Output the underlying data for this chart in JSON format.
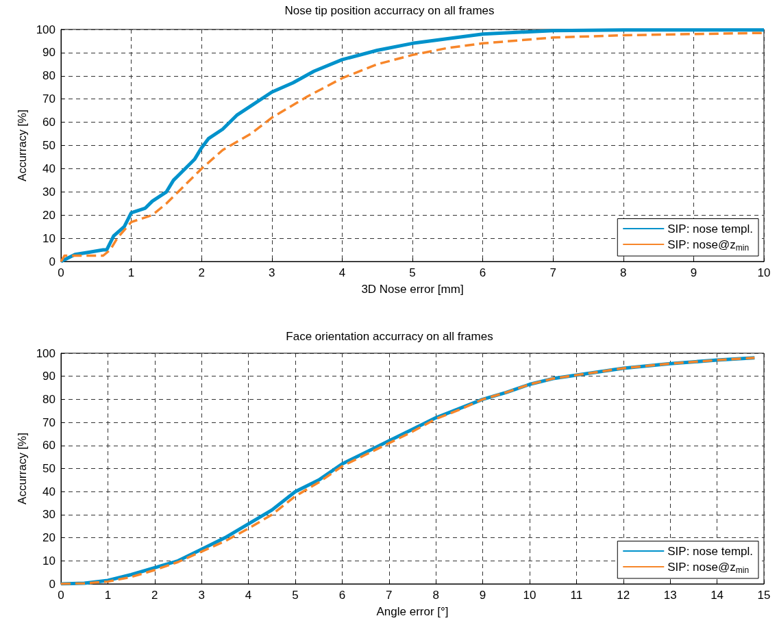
{
  "chart_data": [
    {
      "type": "line",
      "title": "Nose tip position accurracy on all frames",
      "xlabel": "3D Nose error [mm]",
      "ylabel": "Accurracy [%]",
      "xlim": [
        0,
        10
      ],
      "xticks": [
        0,
        1,
        2,
        3,
        4,
        5,
        6,
        7,
        8,
        9,
        10
      ],
      "ylim": [
        0,
        100
      ],
      "yticks": [
        0,
        10,
        20,
        30,
        40,
        50,
        60,
        70,
        80,
        90,
        100
      ],
      "grid": true,
      "legend": "bottom right",
      "marker": "none",
      "series": [
        {
          "name": "SIP: nose templ.",
          "color": "#0092cb",
          "line_style": "solid",
          "x": [
            0,
            0.2,
            0.4,
            0.6,
            0.65,
            0.75,
            0.9,
            1.0,
            1.2,
            1.3,
            1.5,
            1.6,
            1.8,
            1.9,
            2.0,
            2.1,
            2.3,
            2.5,
            2.7,
            3.0,
            3.3,
            3.6,
            4.0,
            4.5,
            5.0,
            5.5,
            6.0,
            7.0,
            8.0,
            10.0
          ],
          "values": [
            0,
            3,
            4,
            5,
            5,
            11,
            15,
            21,
            23,
            26,
            30,
            35,
            41,
            44,
            49,
            53,
            57,
            63,
            67,
            73,
            77,
            82,
            87,
            91,
            94,
            96,
            98,
            99.5,
            99.8,
            99.8
          ]
        },
        {
          "name": "SIP: nose@z$_{min}$",
          "color": "#f7862a",
          "line_style": "dashed",
          "x": [
            0,
            0.05,
            0.6,
            0.7,
            0.8,
            1.0,
            1.3,
            1.5,
            1.7,
            2.0,
            2.3,
            2.7,
            3.0,
            3.5,
            4.0,
            4.5,
            5.0,
            5.5,
            6.0,
            7.0,
            8.0,
            9.0,
            10.0
          ],
          "values": [
            0,
            2.5,
            2.5,
            5,
            10,
            17,
            20,
            25,
            31,
            40,
            48,
            55,
            62,
            71,
            79,
            85,
            89,
            92,
            94,
            96.5,
            97.5,
            98,
            98.5
          ]
        }
      ]
    },
    {
      "type": "line",
      "title": "Face orientation accurracy on all frames",
      "xlabel": "Angle error [°]",
      "ylabel": "Accurracy [%]",
      "xlim": [
        0,
        15
      ],
      "xticks": [
        0,
        1,
        2,
        3,
        4,
        5,
        6,
        7,
        8,
        9,
        10,
        11,
        12,
        13,
        14,
        15
      ],
      "ylim": [
        0,
        100
      ],
      "yticks": [
        0,
        10,
        20,
        30,
        40,
        50,
        60,
        70,
        80,
        90,
        100
      ],
      "grid": true,
      "legend": "bottom right",
      "marker": "none",
      "series": [
        {
          "name": "SIP: nose templ.",
          "color": "#0092cb",
          "line_style": "solid",
          "x": [
            0,
            0.5,
            1,
            1.5,
            2,
            2.5,
            3,
            3.5,
            4,
            4.5,
            5,
            5.5,
            6,
            6.5,
            7,
            7.5,
            8,
            8.5,
            9,
            9.5,
            10,
            10.5,
            11,
            12,
            13,
            14,
            14.8
          ],
          "values": [
            0,
            0.3,
            1.5,
            4,
            7,
            10,
            15,
            20,
            26,
            32,
            40,
            45,
            52,
            57,
            62,
            67,
            72,
            76,
            80,
            83,
            86.5,
            89,
            90.5,
            93.5,
            95.5,
            97,
            98
          ]
        },
        {
          "name": "SIP: nose@z$_{min}$",
          "color": "#f7862a",
          "line_style": "dashed",
          "x": [
            0,
            0.5,
            1,
            1.5,
            2,
            2.5,
            3,
            3.5,
            4,
            4.5,
            5,
            5.5,
            6,
            6.5,
            7,
            7.5,
            8,
            8.5,
            9,
            9.5,
            10,
            10.5,
            11,
            12,
            13,
            14,
            14.8
          ],
          "values": [
            0,
            0.2,
            1,
            3,
            6,
            9.5,
            14,
            18.5,
            24,
            30,
            38,
            44,
            51,
            56,
            61,
            66,
            71.5,
            75.5,
            80,
            83,
            86.5,
            89,
            90.5,
            93.5,
            95.5,
            97,
            98
          ]
        }
      ]
    }
  ]
}
